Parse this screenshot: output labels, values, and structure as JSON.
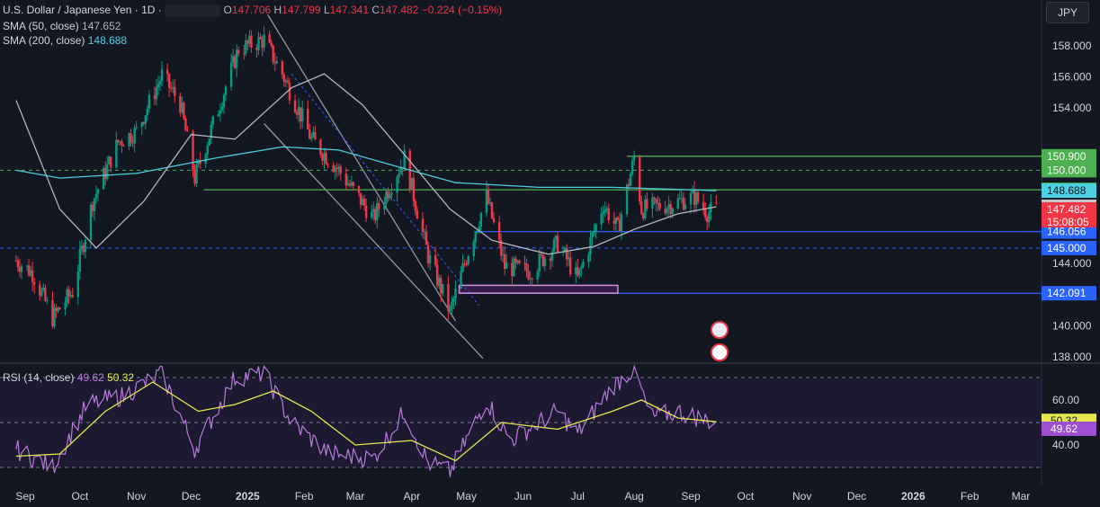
{
  "header": {
    "symbol": "U.S. Dollar / Japanese Yen · 1D ·",
    "o_label": "O",
    "o": "147.706",
    "h_label": "H",
    "h": "147.799",
    "l_label": "L",
    "l": "147.341",
    "c_label": "C",
    "c": "147.482",
    "change": "−0.224 (−0.15%)",
    "sma50_label": "SMA (50, close)",
    "sma50": "147.652",
    "sma200_label": "SMA (200, close)",
    "sma200": "148.688",
    "rsi_label": "RSI (14, close)",
    "rsi": "49.62",
    "rsi_ma": "50.32"
  },
  "currency": "JPY",
  "colors": {
    "bg": "#131722",
    "up": "#089981",
    "down": "#f23645",
    "sma50": "#b2b5be",
    "sma200": "#4dd0e1",
    "rsi": "#b87ad9",
    "rsi_ma": "#e6e84d",
    "green_level": "#4caf50",
    "blue_level": "#2962ff",
    "channel": "#9598a1",
    "zone": "#ce93d8"
  },
  "chart_data": {
    "type": "candlestick",
    "symbol": "USD/JPY",
    "timeframe": "1D",
    "ylim": [
      137.9,
      160.0
    ],
    "y_ticks": [
      "138.000",
      "140.000",
      "142.000",
      "144.000",
      "154.000",
      "156.000",
      "158.000"
    ],
    "x_labels": [
      "Sep",
      "Oct",
      "Nov",
      "Dec",
      "2025",
      "Feb",
      "Mar",
      "Apr",
      "May",
      "Jun",
      "Jul",
      "Aug",
      "Sep",
      "Oct",
      "Nov",
      "Dec",
      "2026",
      "Feb",
      "Mar"
    ],
    "price_path": [
      {
        "date": "2024-08-27",
        "price": 144.2
      },
      {
        "date": "2024-09-05",
        "price": 143.4
      },
      {
        "date": "2024-09-16",
        "price": 140.5
      },
      {
        "date": "2024-09-27",
        "price": 142.2
      },
      {
        "date": "2024-10-08",
        "price": 148.0
      },
      {
        "date": "2024-10-22",
        "price": 151.8
      },
      {
        "date": "2024-11-01",
        "price": 152.5
      },
      {
        "date": "2024-11-15",
        "price": 156.1
      },
      {
        "date": "2024-11-25",
        "price": 154.3
      },
      {
        "date": "2024-12-03",
        "price": 149.5
      },
      {
        "date": "2024-12-12",
        "price": 152.6
      },
      {
        "date": "2024-12-27",
        "price": 157.8
      },
      {
        "date": "2025-01-10",
        "price": 158.4
      },
      {
        "date": "2025-01-20",
        "price": 156.2
      },
      {
        "date": "2025-02-05",
        "price": 152.0
      },
      {
        "date": "2025-02-20",
        "price": 150.0
      },
      {
        "date": "2025-03-11",
        "price": 146.9
      },
      {
        "date": "2025-03-28",
        "price": 150.8
      },
      {
        "date": "2025-04-10",
        "price": 144.5
      },
      {
        "date": "2025-04-22",
        "price": 140.9
      },
      {
        "date": "2025-05-02",
        "price": 144.8
      },
      {
        "date": "2025-05-12",
        "price": 148.3
      },
      {
        "date": "2025-05-22",
        "price": 143.8
      },
      {
        "date": "2025-06-05",
        "price": 143.5
      },
      {
        "date": "2025-06-20",
        "price": 145.3
      },
      {
        "date": "2025-07-01",
        "price": 143.0
      },
      {
        "date": "2025-07-15",
        "price": 147.8
      },
      {
        "date": "2025-07-23",
        "price": 146.2
      },
      {
        "date": "2025-08-01",
        "price": 150.8
      },
      {
        "date": "2025-08-05",
        "price": 147.5
      },
      {
        "date": "2025-08-20",
        "price": 147.8
      },
      {
        "date": "2025-09-03",
        "price": 148.3
      },
      {
        "date": "2025-09-10",
        "price": 147.3
      },
      {
        "date": "2025-09-15",
        "price": 147.48
      }
    ],
    "sma50_path": [
      {
        "date": "2024-08-27",
        "price": 154.5
      },
      {
        "date": "2024-09-20",
        "price": 147.5
      },
      {
        "date": "2024-10-10",
        "price": 145.0
      },
      {
        "date": "2024-11-05",
        "price": 148.0
      },
      {
        "date": "2024-12-01",
        "price": 152.3
      },
      {
        "date": "2024-12-25",
        "price": 152.0
      },
      {
        "date": "2025-01-25",
        "price": 155.3
      },
      {
        "date": "2025-02-12",
        "price": 156.2
      },
      {
        "date": "2025-03-05",
        "price": 154.2
      },
      {
        "date": "2025-03-28",
        "price": 151.0
      },
      {
        "date": "2025-04-22",
        "price": 147.5
      },
      {
        "date": "2025-05-15",
        "price": 145.5
      },
      {
        "date": "2025-06-15",
        "price": 144.6
      },
      {
        "date": "2025-07-10",
        "price": 145.1
      },
      {
        "date": "2025-08-01",
        "price": 146.2
      },
      {
        "date": "2025-08-25",
        "price": 147.2
      },
      {
        "date": "2025-09-15",
        "price": 147.652
      }
    ],
    "sma200_path": [
      {
        "date": "2024-08-27",
        "price": 150.0
      },
      {
        "date": "2024-09-20",
        "price": 149.5
      },
      {
        "date": "2024-11-01",
        "price": 149.8
      },
      {
        "date": "2024-12-15",
        "price": 150.8
      },
      {
        "date": "2025-01-20",
        "price": 151.5
      },
      {
        "date": "2025-02-20",
        "price": 151.3
      },
      {
        "date": "2025-03-25",
        "price": 150.2
      },
      {
        "date": "2025-04-25",
        "price": 149.2
      },
      {
        "date": "2025-06-10",
        "price": 148.9
      },
      {
        "date": "2025-07-20",
        "price": 148.9
      },
      {
        "date": "2025-09-15",
        "price": 148.688
      }
    ],
    "levels": [
      {
        "label": "150.900",
        "price": 150.9,
        "kind": "green"
      },
      {
        "label": "150.000",
        "price": 150.0,
        "kind": "green"
      },
      {
        "label": "148.745",
        "price": 148.745,
        "kind": "green"
      },
      {
        "label": "146.056",
        "price": 146.056,
        "kind": "blue"
      },
      {
        "label": "145.000",
        "price": 145.0,
        "kind": "blue"
      },
      {
        "label": "142.091",
        "price": 142.091,
        "kind": "blue"
      }
    ],
    "price_labels": [
      {
        "label": "148.688",
        "price": 148.688,
        "kind": "sma200"
      },
      {
        "label": "147.652",
        "price": 147.652,
        "kind": "sma50"
      },
      {
        "label": "147.482",
        "price": 147.482,
        "kind": "last",
        "countdown": "15:08:05"
      }
    ],
    "channel": {
      "upper": [
        {
          "date": "2025-01-12",
          "price": 160.0
        },
        {
          "date": "2025-04-25",
          "price": 140.3
        }
      ],
      "lower": [
        {
          "date": "2025-01-10",
          "price": 153.0
        },
        {
          "date": "2025-05-10",
          "price": 137.9
        }
      ]
    },
    "zone": {
      "from": "2025-04-27",
      "to": "2025-07-23",
      "low": 142.1,
      "high": 142.6
    },
    "rsi": {
      "ylim": [
        24,
        76
      ],
      "y_ticks": [
        "60.00",
        "40.00"
      ],
      "bands": [
        70,
        50,
        30
      ],
      "last": 49.62,
      "ma_last": 50.32,
      "rsi_path": [
        {
          "date": "2024-08-27",
          "price": 38
        },
        {
          "date": "2024-09-16",
          "price": 30
        },
        {
          "date": "2024-10-05",
          "price": 58
        },
        {
          "date": "2024-10-25",
          "price": 62
        },
        {
          "date": "2024-11-15",
          "price": 72
        },
        {
          "date": "2024-12-03",
          "price": 38
        },
        {
          "date": "2024-12-25",
          "price": 70
        },
        {
          "date": "2025-01-10",
          "price": 72
        },
        {
          "date": "2025-01-25",
          "price": 50
        },
        {
          "date": "2025-02-15",
          "price": 36
        },
        {
          "date": "2025-03-11",
          "price": 34
        },
        {
          "date": "2025-03-28",
          "price": 55
        },
        {
          "date": "2025-04-10",
          "price": 32
        },
        {
          "date": "2025-04-22",
          "price": 28
        },
        {
          "date": "2025-05-12",
          "price": 60
        },
        {
          "date": "2025-05-25",
          "price": 42
        },
        {
          "date": "2025-06-20",
          "price": 55
        },
        {
          "date": "2025-07-01",
          "price": 45
        },
        {
          "date": "2025-07-20",
          "price": 66
        },
        {
          "date": "2025-08-01",
          "price": 74
        },
        {
          "date": "2025-08-10",
          "price": 52
        },
        {
          "date": "2025-08-25",
          "price": 55
        },
        {
          "date": "2025-09-15",
          "price": 49.62
        }
      ],
      "ma_path": [
        {
          "date": "2024-08-27",
          "price": 35
        },
        {
          "date": "2024-09-20",
          "price": 36
        },
        {
          "date": "2024-10-15",
          "price": 55
        },
        {
          "date": "2024-11-10",
          "price": 68
        },
        {
          "date": "2024-12-05",
          "price": 55
        },
        {
          "date": "2024-12-25",
          "price": 58
        },
        {
          "date": "2025-01-15",
          "price": 64
        },
        {
          "date": "2025-02-05",
          "price": 55
        },
        {
          "date": "2025-03-01",
          "price": 40
        },
        {
          "date": "2025-04-01",
          "price": 42
        },
        {
          "date": "2025-04-25",
          "price": 33
        },
        {
          "date": "2025-05-20",
          "price": 50
        },
        {
          "date": "2025-06-20",
          "price": 47
        },
        {
          "date": "2025-07-20",
          "price": 55
        },
        {
          "date": "2025-08-05",
          "price": 60
        },
        {
          "date": "2025-08-25",
          "price": 52
        },
        {
          "date": "2025-09-15",
          "price": 50.32
        }
      ]
    }
  }
}
